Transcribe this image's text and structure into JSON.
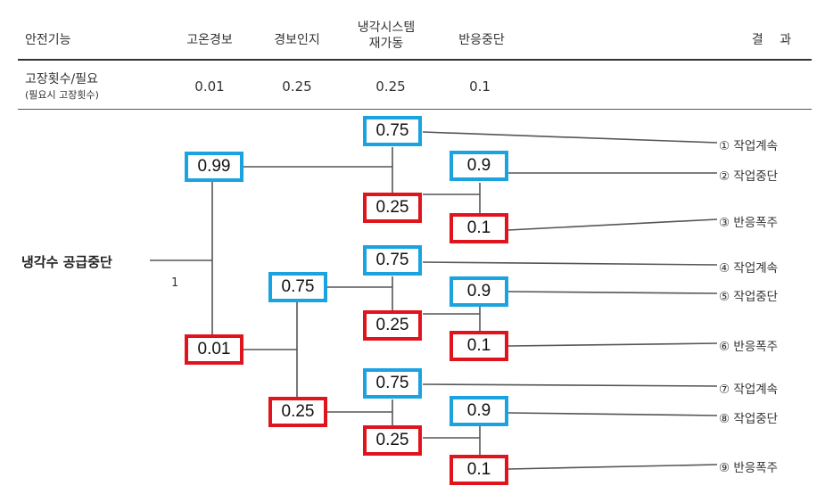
{
  "header": {
    "col0": "안전기능",
    "col1": "고온경보",
    "col2": "경보인지",
    "col3_line1": "냉각시스템",
    "col3_line2": "재가동",
    "col4": "반응중단",
    "col5": "결 과"
  },
  "failure_row": {
    "label": "고장횟수/필요",
    "sublabel": "(필요시 고장횟수)",
    "v1": "0.01",
    "v2": "0.25",
    "v3": "0.25",
    "v4": "0.1"
  },
  "initiating_event": {
    "label": "냉각수 공급중단",
    "frequency": "1"
  },
  "boxes": {
    "b099": "0.99",
    "b001": "0.01",
    "b075a": "0.75",
    "b025a": "0.25",
    "b075b": "0.75",
    "b025b": "0.25",
    "b075c": "0.75",
    "b025c": "0.25",
    "b075d": "0.75",
    "b025d": "0.25",
    "b09a": "0.9",
    "b01a": "0.1",
    "b09b": "0.9",
    "b01b": "0.1",
    "b09c": "0.9",
    "b01c": "0.1"
  },
  "outcomes": [
    "① 작업계속",
    "② 작업중단",
    "③ 반응폭주",
    "④ 작업계속",
    "⑤ 작업중단",
    "⑥ 반응폭주",
    "⑦ 작업계속",
    "⑧ 작업중단",
    "⑨ 반응폭주"
  ],
  "colors": {
    "success": "#1aa3e0",
    "failure": "#e0141c",
    "line": "#555555"
  }
}
